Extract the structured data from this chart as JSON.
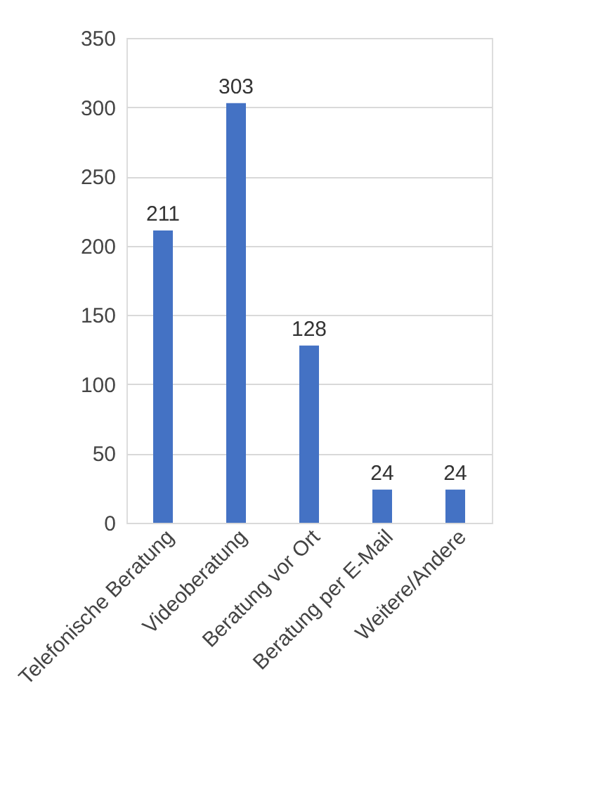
{
  "chart_data": {
    "type": "bar",
    "categories": [
      "Telefonische Beratung",
      "Videoberatung",
      "Beratung vor Ort",
      "Beratung per E-Mail",
      "Weitere/Andere"
    ],
    "values": [
      211,
      303,
      128,
      24,
      24
    ],
    "color": "#4472c4",
    "ylim": [
      0,
      350
    ],
    "yticks": [
      0,
      50,
      100,
      150,
      200,
      250,
      300,
      350
    ],
    "grid": "y",
    "data_labels": true
  }
}
